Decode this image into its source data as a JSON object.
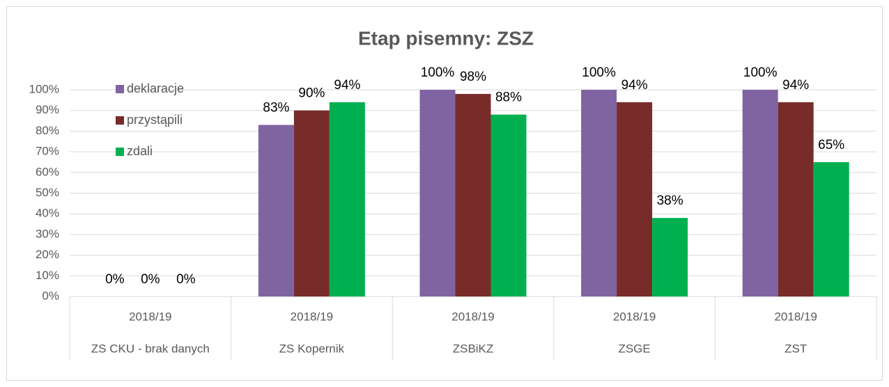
{
  "chart_data": {
    "type": "bar",
    "title": "Etap pisemny: ZSZ",
    "categories": [
      "2018/19",
      "2018/19",
      "2018/19",
      "2018/19",
      "2018/19"
    ],
    "groups": [
      "ZS CKU - brak danych",
      "ZS Kopernik",
      "ZSBiKZ",
      "ZSGE",
      "ZST"
    ],
    "series": [
      {
        "name": "deklaracje",
        "color": "#8064a2",
        "values": [
          0,
          83,
          100,
          100,
          100
        ],
        "value_labels": [
          "0%",
          "83%",
          "100%",
          "100%",
          "100%"
        ]
      },
      {
        "name": "przystąpili",
        "color": "#772c2a",
        "values": [
          0,
          90,
          98,
          94,
          94
        ],
        "value_labels": [
          "0%",
          "90%",
          "98%",
          "94%",
          "94%"
        ]
      },
      {
        "name": "zdali",
        "color": "#00b050",
        "values": [
          0,
          94,
          88,
          38,
          65
        ],
        "value_labels": [
          "0%",
          "94%",
          "88%",
          "38%",
          "65%"
        ]
      }
    ],
    "ylim": [
      0,
      100
    ],
    "yticks": [
      {
        "value": 0,
        "label": "0%"
      },
      {
        "value": 10,
        "label": "10%"
      },
      {
        "value": 20,
        "label": "20%"
      },
      {
        "value": 30,
        "label": "30%"
      },
      {
        "value": 40,
        "label": "40%"
      },
      {
        "value": 50,
        "label": "50%"
      },
      {
        "value": 60,
        "label": "60%"
      },
      {
        "value": 70,
        "label": "70%"
      },
      {
        "value": 80,
        "label": "80%"
      },
      {
        "value": 90,
        "label": "90%"
      },
      {
        "value": 100,
        "label": "100%"
      }
    ],
    "grid": true,
    "legend": "top-left"
  }
}
